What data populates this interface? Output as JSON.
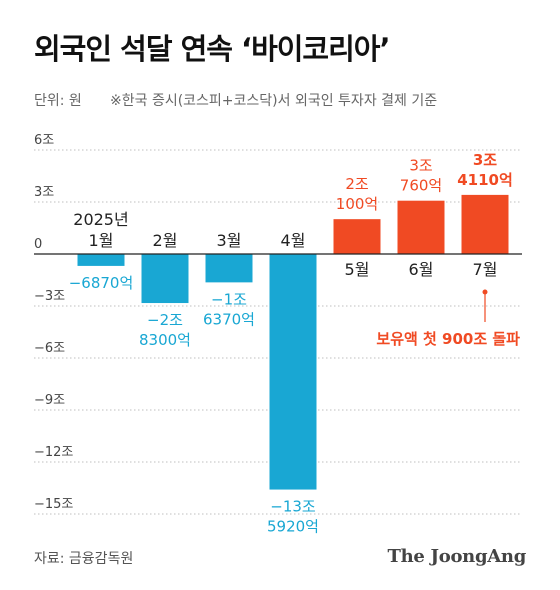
{
  "header": {
    "title": "외국인 석달 연속 ‘바이코리아’",
    "unit": "단위: 원",
    "note": "※한국 증시(코스피+코스닥)서 외국인 투자자 결제 기준"
  },
  "footer": {
    "source": "자료: 금융감독원",
    "brand": "The JoongAng"
  },
  "colors": {
    "negative": "#19a7d3",
    "positive": "#f04a23",
    "axis": "#222222",
    "grid": "#bfbfbf",
    "text": "#222222"
  },
  "chart_data": {
    "type": "bar",
    "categories": [
      "2025년\n1월",
      "2월",
      "3월",
      "4월",
      "5월",
      "6월",
      "7월"
    ],
    "values": [
      -0.687,
      -2.83,
      -1.637,
      -13.592,
      2.01,
      3.076,
      3.411
    ],
    "value_labels": [
      "−6870억",
      "−2조\n8300억",
      "−1조\n6370억",
      "−13조\n5920억",
      "2조\n100억",
      "3조\n760억",
      "3조\n4110억"
    ],
    "y_tick_labels": [
      "6조",
      "3조",
      "0",
      "−3조",
      "−6조",
      "−9조",
      "−12조",
      "−15조"
    ],
    "y_ticks": [
      6,
      3,
      0,
      -3,
      -6,
      -9,
      -12,
      -15
    ],
    "ylim": [
      -16.5,
      6
    ],
    "grid": true,
    "annotation": {
      "category_index": 6,
      "text": "보유액 첫 900조 돌파"
    }
  }
}
